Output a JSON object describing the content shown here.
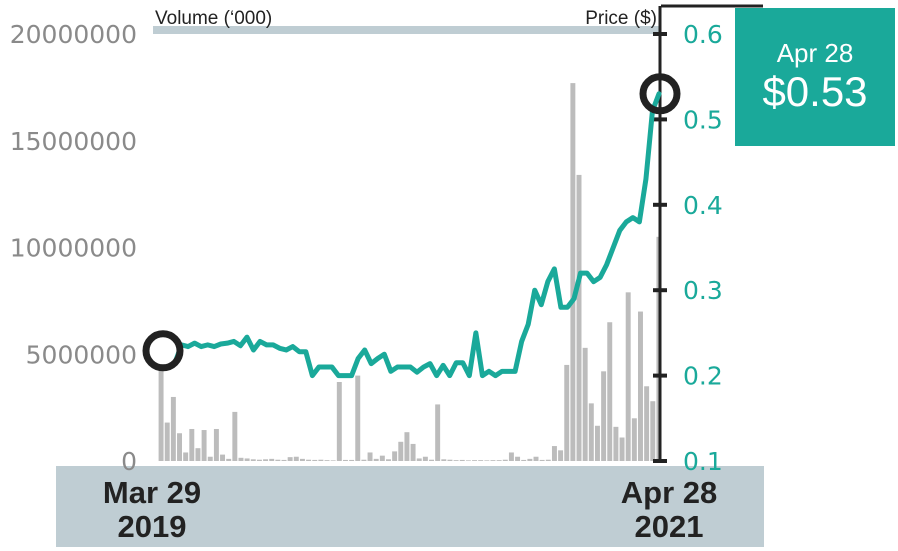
{
  "colors": {
    "price_line": "#1aa99a",
    "volume_bar": "#bcbcbc",
    "axis_band": "#bfcdd3",
    "callout_bg": "#1aa99a",
    "marker": "#222222"
  },
  "legend": {
    "volume_label": "Volume (‘000)",
    "price_label": "Price ($)"
  },
  "dates": {
    "start_label": "Mar 29",
    "start_year": "2019",
    "end_label": "Apr 28",
    "end_year": "2021"
  },
  "callout": {
    "date": "Apr 28",
    "price": "$0.53"
  },
  "chart_data": {
    "type": "bar+line",
    "x_start": "Mar 29 2019",
    "x_end": "Apr 28 2021",
    "volume_axis": {
      "label": "Volume (‘000)",
      "ylim": [
        0,
        20000000
      ],
      "ticks": [
        0,
        5000000,
        10000000,
        15000000,
        20000000
      ],
      "tick_labels": [
        "0",
        "5000000",
        "10000000",
        "15000000",
        "20000000"
      ]
    },
    "price_axis": {
      "label": "Price ($)",
      "ylim": [
        0.1,
        0.6
      ],
      "ticks": [
        0.1,
        0.2,
        0.3,
        0.4,
        0.5,
        0.6
      ],
      "tick_labels": [
        "0.1",
        "0.2",
        "0.3",
        "0.4",
        "0.5",
        "0.6"
      ]
    },
    "volume_values": [
      4400000,
      1800000,
      3000000,
      1300000,
      400000,
      1500000,
      600000,
      1450000,
      200000,
      1500000,
      300000,
      100000,
      2300000,
      150000,
      120000,
      80000,
      60000,
      80000,
      100000,
      60000,
      50000,
      180000,
      200000,
      100000,
      60000,
      50000,
      60000,
      40000,
      30000,
      3700000,
      50000,
      50000,
      4000000,
      60000,
      400000,
      100000,
      250000,
      80000,
      450000,
      900000,
      1350000,
      800000,
      120000,
      200000,
      60000,
      2650000,
      80000,
      60000,
      40000,
      50000,
      30000,
      40000,
      40000,
      30000,
      40000,
      40000,
      60000,
      400000,
      200000,
      50000,
      100000,
      200000,
      50000,
      60000,
      700000,
      500000,
      4500000,
      17700000,
      13400000,
      5300000,
      2700000,
      1650000,
      4200000,
      6500000,
      1600000,
      1100000,
      7900000,
      2000000,
      7000000,
      3500000,
      2800000,
      10500000
    ],
    "price_values": [
      0.215,
      0.236,
      0.234,
      0.238,
      0.234,
      0.236,
      0.234,
      0.237,
      0.238,
      0.24,
      0.235,
      0.245,
      0.23,
      0.24,
      0.236,
      0.236,
      0.232,
      0.23,
      0.234,
      0.228,
      0.228,
      0.2,
      0.21,
      0.21,
      0.21,
      0.2,
      0.2,
      0.2,
      0.22,
      0.23,
      0.214,
      0.22,
      0.225,
      0.205,
      0.21,
      0.21,
      0.21,
      0.204,
      0.21,
      0.214,
      0.2,
      0.212,
      0.2,
      0.215,
      0.215,
      0.2,
      0.25,
      0.2,
      0.205,
      0.2,
      0.205,
      0.205,
      0.205,
      0.24,
      0.26,
      0.3,
      0.283,
      0.31,
      0.325,
      0.28,
      0.28,
      0.29,
      0.32,
      0.32,
      0.31,
      0.315,
      0.33,
      0.35,
      0.37,
      0.38,
      0.385,
      0.38,
      0.43,
      0.51,
      0.53
    ]
  }
}
